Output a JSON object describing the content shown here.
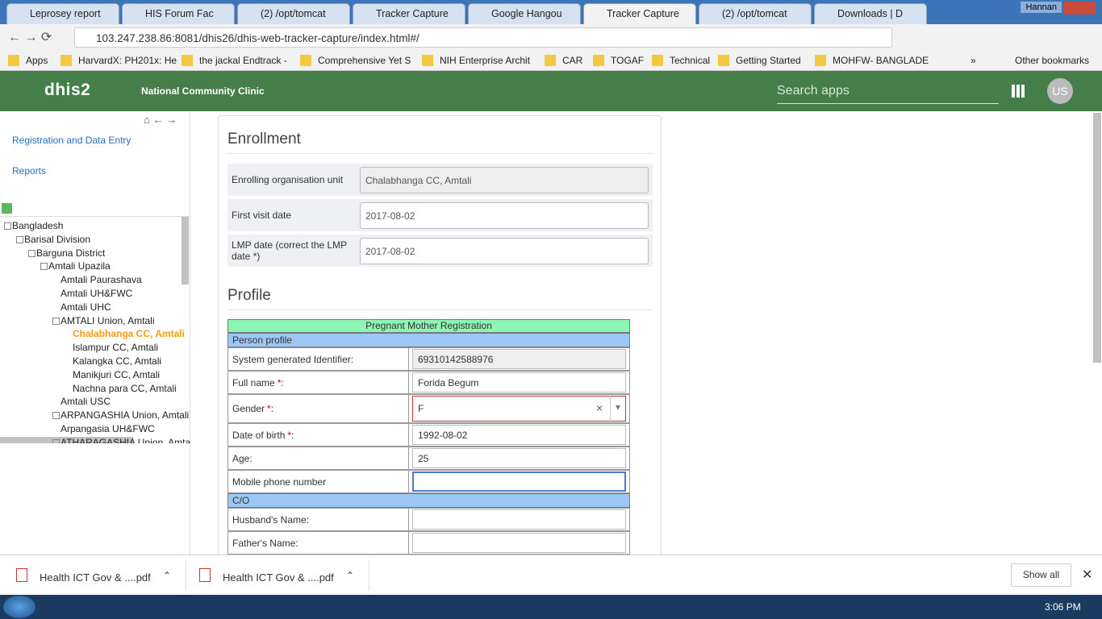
{
  "browser": {
    "tabs": [
      "Leprosey report",
      "HIS Forum Fac",
      "(2) /opt/tomcat",
      "Tracker Capture",
      "Google Hangou",
      "Tracker Capture",
      "(2) /opt/tomcat",
      "Downloads | D"
    ],
    "active_tab": 5,
    "user": "Hannan",
    "url": "103.247.238.86:8081/dhis26/dhis-web-tracker-capture/index.html#/",
    "bookmarks": [
      "Apps",
      "HarvardX: PH201x: He",
      "the jackal Endtrack -",
      "Comprehensive Yet S",
      "NIH Enterprise Archit",
      "CAR",
      "TOGAF",
      "Technical",
      "Getting Started",
      "MOHFW- BANGLADE"
    ],
    "more": "»",
    "other_bookmarks": "Other bookmarks"
  },
  "header": {
    "logo": "dhis2",
    "title": "National Community Clinic",
    "search_placeholder": "Search apps",
    "user_initials": "US"
  },
  "sidebar": {
    "links": [
      "Registration and Data Entry",
      "Reports"
    ],
    "tree": [
      {
        "label": "Bangladesh",
        "children": [
          {
            "label": "Barisal Division",
            "children": [
              {
                "label": "Barguna District",
                "children": [
                  {
                    "label": "Amtali Upazila",
                    "children": [
                      {
                        "label": "Amtali Paurashava"
                      },
                      {
                        "label": "Amtali UH&FWC"
                      },
                      {
                        "label": "Amtali UHC"
                      },
                      {
                        "label": "AMTALI Union, Amtali",
                        "children": [
                          {
                            "label": "Chalabhanga CC, Amtali",
                            "selected": true
                          },
                          {
                            "label": "Islampur CC, Amtali"
                          },
                          {
                            "label": "Kalangka CC, Amtali"
                          },
                          {
                            "label": "Manikjuri CC, Amtali"
                          },
                          {
                            "label": "Nachna para CC, Amtali"
                          }
                        ]
                      },
                      {
                        "label": "Amtali USC"
                      },
                      {
                        "label": "ARPANGASHIA Union, Amtali",
                        "collapsed": true
                      },
                      {
                        "label": "Arpangasia UH&FWC"
                      },
                      {
                        "label": "ATHARAGASHIA Union, Amtali",
                        "collapsed": true
                      }
                    ]
                  }
                ]
              }
            ]
          }
        ]
      }
    ]
  },
  "enrollment": {
    "title": "Enrollment",
    "fields": [
      {
        "label": "Enrolling organisation unit",
        "value": "Chalabhanga CC, Amtali",
        "readonly": true
      },
      {
        "label": "First visit date",
        "value": "2017-08-02"
      },
      {
        "label": "LMP date (correct the LMP date *)",
        "value": "2017-08-02"
      }
    ]
  },
  "profile": {
    "title": "Profile",
    "form_title": "Pregnant Mother Registration",
    "sections": [
      {
        "name": "Person profile",
        "rows": [
          {
            "label": "System generated Identifier:",
            "value": "69310142588976",
            "readonly": true
          },
          {
            "label": "Full name ",
            "required": "*",
            "suffix": ":",
            "value": "Forida Begum"
          },
          {
            "label": "Gender ",
            "required": "*",
            "suffix": ":",
            "value": "F",
            "select": true,
            "clear": "×",
            "caret": "▾"
          },
          {
            "label": "Date of birth ",
            "required": "*",
            "suffix": ":",
            "value": "1992-08-02"
          },
          {
            "label": "Age:",
            "value": "25"
          },
          {
            "label": "Mobile phone number",
            "focused": true
          }
        ]
      },
      {
        "name": "C/O",
        "rows": [
          {
            "label": "Husband's Name:"
          },
          {
            "label": "Father's Name:"
          }
        ]
      }
    ]
  },
  "downloads": {
    "files": [
      "Health ICT Gov & ....pdf",
      "Health ICT Gov & ....pdf"
    ],
    "show_all": "Show all"
  },
  "taskbar": {
    "time": "3:06 PM"
  }
}
